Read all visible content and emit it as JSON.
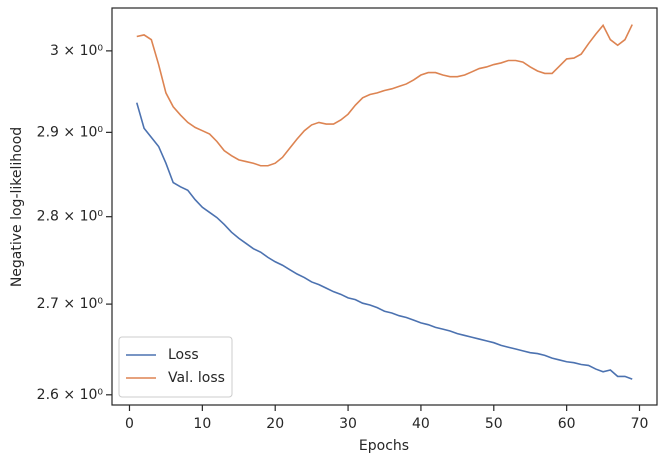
{
  "chart_data": {
    "type": "line",
    "xlabel": "Epochs",
    "ylabel": "Negative log-likelihood",
    "yscale": "log",
    "grid": false,
    "legend": "lower left",
    "x": [
      1,
      2,
      3,
      4,
      5,
      6,
      7,
      8,
      9,
      10,
      11,
      12,
      13,
      14,
      15,
      16,
      17,
      18,
      19,
      20,
      21,
      22,
      23,
      24,
      25,
      26,
      27,
      28,
      29,
      30,
      31,
      32,
      33,
      34,
      35,
      36,
      37,
      38,
      39,
      40,
      41,
      42,
      43,
      44,
      45,
      46,
      47,
      48,
      49,
      50,
      51,
      52,
      53,
      54,
      55,
      56,
      57,
      58,
      59,
      60,
      61,
      62,
      63,
      64,
      65,
      66,
      67,
      68,
      69
    ],
    "series": [
      {
        "name": "Loss",
        "color": "#4c72b0",
        "values": [
          2.936,
          2.905,
          2.894,
          2.883,
          2.863,
          2.84,
          2.835,
          2.831,
          2.82,
          2.811,
          2.805,
          2.799,
          2.791,
          2.782,
          2.775,
          2.769,
          2.763,
          2.759,
          2.753,
          2.748,
          2.744,
          2.739,
          2.734,
          2.73,
          2.725,
          2.722,
          2.718,
          2.714,
          2.711,
          2.707,
          2.705,
          2.701,
          2.699,
          2.696,
          2.692,
          2.69,
          2.687,
          2.685,
          2.682,
          2.679,
          2.677,
          2.674,
          2.672,
          2.67,
          2.667,
          2.665,
          2.663,
          2.661,
          2.659,
          2.657,
          2.654,
          2.652,
          2.65,
          2.648,
          2.646,
          2.645,
          2.643,
          2.64,
          2.638,
          2.636,
          2.635,
          2.633,
          2.632,
          2.628,
          2.625,
          2.627,
          2.62,
          2.62,
          2.617
        ]
      },
      {
        "name": "Val. loss",
        "color": "#dd8452",
        "values": [
          3.018,
          3.02,
          3.014,
          2.983,
          2.948,
          2.931,
          2.921,
          2.912,
          2.906,
          2.902,
          2.898,
          2.889,
          2.878,
          2.872,
          2.867,
          2.865,
          2.863,
          2.86,
          2.86,
          2.863,
          2.87,
          2.881,
          2.892,
          2.902,
          2.909,
          2.912,
          2.91,
          2.91,
          2.915,
          2.922,
          2.933,
          2.942,
          2.946,
          2.948,
          2.951,
          2.953,
          2.956,
          2.959,
          2.964,
          2.97,
          2.973,
          2.973,
          2.97,
          2.968,
          2.968,
          2.97,
          2.974,
          2.978,
          2.98,
          2.983,
          2.985,
          2.988,
          2.988,
          2.986,
          2.98,
          2.975,
          2.972,
          2.972,
          2.981,
          2.99,
          2.991,
          2.996,
          3.009,
          3.021,
          3.032,
          3.014,
          3.007,
          3.014,
          3.033
        ]
      }
    ],
    "xlim": [
      -2.4,
      72.4
    ],
    "xticks": [
      0,
      10,
      20,
      30,
      40,
      50,
      60,
      70
    ],
    "ylim": [
      2.589,
      3.054
    ],
    "yticks": [
      {
        "value": 2.6,
        "label": "2.6 × 10⁰"
      },
      {
        "value": 2.7,
        "label": "2.7 × 10⁰"
      },
      {
        "value": 2.8,
        "label": "2.8 × 10⁰"
      },
      {
        "value": 2.9,
        "label": "2.9 × 10⁰"
      },
      {
        "value": 3,
        "label": "3 × 10⁰"
      }
    ]
  }
}
